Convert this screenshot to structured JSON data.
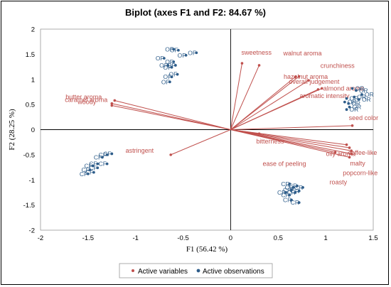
{
  "chart_data": {
    "type": "scatter",
    "title": "Biplot (axes F1 and F2: 84.67 %)",
    "xlabel": "F1 (56.42 %)",
    "ylabel": "F2 (28.25 %)",
    "xlim": [
      -2,
      1.5
    ],
    "ylim": [
      -2,
      2
    ],
    "xticks": [
      -2,
      -1.5,
      -1,
      -0.5,
      0,
      0.5,
      1,
      1.5
    ],
    "yticks": [
      -2,
      -1.5,
      -1,
      -0.5,
      0,
      0.5,
      1,
      1.5,
      2
    ],
    "xtick_labels": [
      "-2",
      "-1.5",
      "-1",
      "-0.5",
      "0",
      "0.5",
      "1",
      "1.5"
    ],
    "ytick_labels": [
      "-2",
      "-1.5",
      "-1",
      "-0.5",
      "0",
      "0.5",
      "1",
      "1.5",
      "2"
    ],
    "grid": false,
    "legend_position": "bottom",
    "colors": {
      "variables": "#c0504d",
      "observations": "#2e5d8a"
    },
    "series": [
      {
        "name": "Active variables",
        "vectors": [
          {
            "label": "sweetness",
            "x": 0.12,
            "y": 1.32
          },
          {
            "label": "walnut aroma",
            "x": 0.3,
            "y": 1.28
          },
          {
            "label": "crunchiness",
            "x": 0.72,
            "y": 1.06
          },
          {
            "label": "hazelnut aroma",
            "x": 0.82,
            "y": 0.98
          },
          {
            "label": "overall judgement",
            "x": 0.68,
            "y": 1.05
          },
          {
            "label": "almond aroma",
            "x": 0.96,
            "y": 0.82
          },
          {
            "label": "aromatic intensity",
            "x": 0.92,
            "y": 0.8
          },
          {
            "label": "seed color",
            "x": 1.28,
            "y": 0.08
          },
          {
            "label": "bitterness",
            "x": 0.3,
            "y": -0.08
          },
          {
            "label": "oily aroma",
            "x": 1.22,
            "y": -0.3
          },
          {
            "label": "coffee-like",
            "x": 1.25,
            "y": -0.36
          },
          {
            "label": "ease of peeling",
            "x": 1.1,
            "y": -0.45
          },
          {
            "label": "malty",
            "x": 1.27,
            "y": -0.42
          },
          {
            "label": "popcorn-like",
            "x": 1.27,
            "y": -0.48
          },
          {
            "label": "roasty",
            "x": 1.25,
            "y": -0.55
          },
          {
            "label": "butter aroma",
            "x": -1.22,
            "y": 0.58
          },
          {
            "label": "caramel aroma",
            "x": -1.25,
            "y": 0.52
          },
          {
            "label": "woody",
            "x": -1.25,
            "y": 0.48
          },
          {
            "label": "astringent",
            "x": -0.63,
            "y": -0.5
          }
        ]
      },
      {
        "name": "Active observations",
        "points": [
          {
            "label": "OF",
            "x": -0.6,
            "y": 1.6
          },
          {
            "label": "OF",
            "x": -0.55,
            "y": 1.58
          },
          {
            "label": "OF",
            "x": -0.47,
            "y": 1.48
          },
          {
            "label": "OF",
            "x": -0.36,
            "y": 1.53
          },
          {
            "label": "OF",
            "x": -0.7,
            "y": 1.42
          },
          {
            "label": "OF",
            "x": -0.6,
            "y": 1.35
          },
          {
            "label": "OF",
            "x": -0.58,
            "y": 1.28
          },
          {
            "label": "OF",
            "x": -0.62,
            "y": 1.24
          },
          {
            "label": "OF",
            "x": -0.66,
            "y": 1.28
          },
          {
            "label": "OF",
            "x": -0.56,
            "y": 1.1
          },
          {
            "label": "OF",
            "x": -0.62,
            "y": 1.05
          },
          {
            "label": "OF",
            "x": -0.64,
            "y": 0.95
          },
          {
            "label": "OR",
            "x": 1.28,
            "y": 0.82
          },
          {
            "label": "OR",
            "x": 1.32,
            "y": 0.78
          },
          {
            "label": "OR",
            "x": 1.38,
            "y": 0.7
          },
          {
            "label": "OR",
            "x": 1.3,
            "y": 0.65
          },
          {
            "label": "OR",
            "x": 1.22,
            "y": 0.62
          },
          {
            "label": "OR",
            "x": 1.35,
            "y": 0.6
          },
          {
            "label": "OR",
            "x": 1.2,
            "y": 0.55
          },
          {
            "label": "OR",
            "x": 1.24,
            "y": 0.52
          },
          {
            "label": "OR",
            "x": 1.25,
            "y": 0.45
          },
          {
            "label": "OR",
            "x": 1.22,
            "y": 0.4
          },
          {
            "label": "CF",
            "x": -1.25,
            "y": -0.48
          },
          {
            "label": "CF",
            "x": -1.3,
            "y": -0.5
          },
          {
            "label": "CF",
            "x": -1.35,
            "y": -0.55
          },
          {
            "label": "CF",
            "x": -1.4,
            "y": -0.68
          },
          {
            "label": "CF",
            "x": -1.45,
            "y": -0.72
          },
          {
            "label": "CF",
            "x": -1.4,
            "y": -0.76
          },
          {
            "label": "CF",
            "x": -1.3,
            "y": -0.68
          },
          {
            "label": "CF",
            "x": -1.48,
            "y": -0.8
          },
          {
            "label": "CF",
            "x": -1.5,
            "y": -0.88
          },
          {
            "label": "CF",
            "x": -1.44,
            "y": -0.85
          },
          {
            "label": "CR",
            "x": 0.62,
            "y": -1.08
          },
          {
            "label": "CR",
            "x": 0.66,
            "y": -1.15
          },
          {
            "label": "CR",
            "x": 0.7,
            "y": -1.12
          },
          {
            "label": "CR",
            "x": 0.76,
            "y": -1.15
          },
          {
            "label": "CR",
            "x": 0.64,
            "y": -1.2
          },
          {
            "label": "CR",
            "x": 0.68,
            "y": -1.25
          },
          {
            "label": "CR",
            "x": 0.58,
            "y": -1.25
          },
          {
            "label": "CR",
            "x": 0.62,
            "y": -1.3
          },
          {
            "label": "CR",
            "x": 0.72,
            "y": -1.22
          },
          {
            "label": "CR",
            "x": 0.64,
            "y": -1.4
          },
          {
            "label": "CR",
            "x": 0.72,
            "y": -1.45
          }
        ]
      }
    ]
  }
}
